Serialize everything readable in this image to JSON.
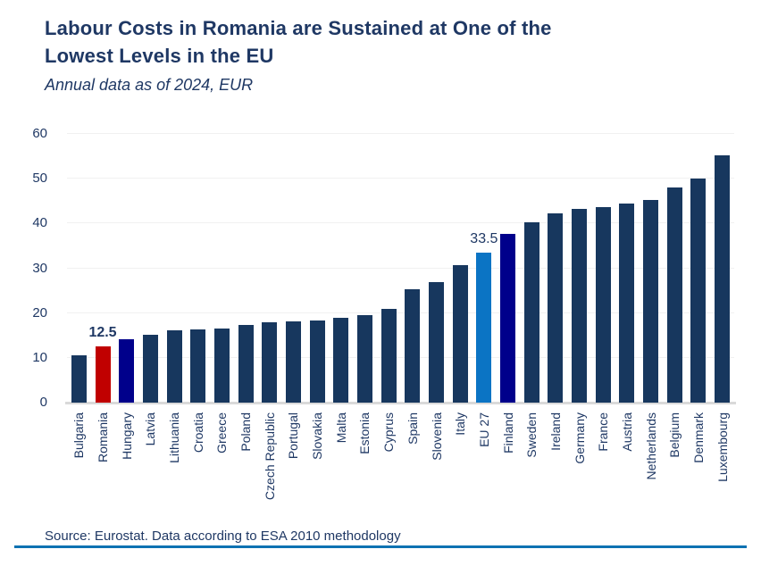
{
  "header": {
    "title_line1": "Labour Costs in Romania are Sustained at One of the",
    "title_line2": "Lowest Levels in the EU",
    "subtitle": "Annual data as of 2024, EUR"
  },
  "footer": {
    "source": "Source: Eurostat. Data according to ESA 2010 methodology"
  },
  "colors": {
    "text_navy": "#1f3864",
    "bar_default": "#17375e",
    "bar_romania_red": "#c00000",
    "bar_highlight_navy": "#00008b",
    "bar_eu27_blue": "#0b74c4",
    "gridline": "#f1f1f1",
    "axis_line": "#d9d9d9",
    "footer_rule": "#0d72b2"
  },
  "chart_data": {
    "type": "bar",
    "title": "Labour Costs in Romania are Sustained at One of the Lowest Levels in the EU",
    "subtitle": "Annual data as of 2024, EUR",
    "xlabel": "",
    "ylabel": "",
    "ylim": [
      0,
      60
    ],
    "yticks": [
      0,
      10,
      20,
      30,
      40,
      50,
      60
    ],
    "grid": true,
    "legend": false,
    "categories": [
      "Bulgaria",
      "Romania",
      "Hungary",
      "Latvia",
      "Lithuania",
      "Croatia",
      "Greece",
      "Poland",
      "Czech Republic",
      "Portugal",
      "Slovakia",
      "Malta",
      "Estonia",
      "Cyprus",
      "Spain",
      "Slovenia",
      "Italy",
      "EU 27",
      "Finland",
      "Sweden",
      "Ireland",
      "Germany",
      "France",
      "Austria",
      "Netherlands",
      "Belgium",
      "Denmark",
      "Luxembourg"
    ],
    "values": [
      10.5,
      12.5,
      14.1,
      15.1,
      16.1,
      16.4,
      16.6,
      17.3,
      18.0,
      18.1,
      18.3,
      19.0,
      19.5,
      21.0,
      25.4,
      26.9,
      30.8,
      33.5,
      37.7,
      40.2,
      42.3,
      43.3,
      43.7,
      44.4,
      45.2,
      48.1,
      50.0,
      55.2
    ],
    "bar_colors": [
      "#17375e",
      "#c00000",
      "#00008b",
      "#17375e",
      "#17375e",
      "#17375e",
      "#17375e",
      "#17375e",
      "#17375e",
      "#17375e",
      "#17375e",
      "#17375e",
      "#17375e",
      "#17375e",
      "#17375e",
      "#17375e",
      "#17375e",
      "#0b74c4",
      "#00008b",
      "#17375e",
      "#17375e",
      "#17375e",
      "#17375e",
      "#17375e",
      "#17375e",
      "#17375e",
      "#17375e",
      "#17375e"
    ],
    "data_labels": [
      {
        "category": "Romania",
        "text": "12.5",
        "bold": true
      },
      {
        "category": "EU 27",
        "text": "33.5",
        "bold": false
      }
    ]
  }
}
